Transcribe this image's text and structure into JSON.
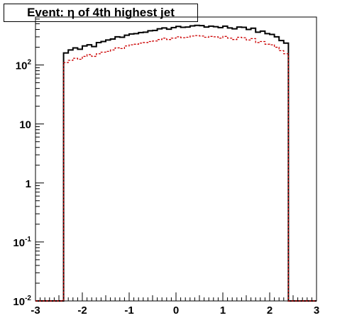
{
  "chart_data": {
    "type": "step",
    "title": "Event: η of 4th highest jet",
    "xlabel": "",
    "ylabel": "",
    "xlim": [
      -3,
      3
    ],
    "ylim": [
      0.01,
      650
    ],
    "yscale": "log",
    "x_ticks": [
      "-3",
      "-2",
      "-1",
      "0",
      "1",
      "2",
      "3"
    ],
    "y_ticks": [
      {
        "base": "10",
        "exp": "-2",
        "value": 0.01
      },
      {
        "base": "10",
        "exp": "-1",
        "value": 0.1
      },
      {
        "base": "1",
        "exp": "",
        "value": 1
      },
      {
        "base": "10",
        "exp": "",
        "value": 10
      },
      {
        "base": "10",
        "exp": "2",
        "value": 100
      }
    ],
    "bin_edges_from": -2.4,
    "bin_width": 0.1,
    "series": [
      {
        "color": "#000000",
        "style": "solid",
        "values": [
          160,
          180,
          195,
          185,
          210,
          220,
          205,
          240,
          250,
          265,
          275,
          300,
          295,
          320,
          335,
          340,
          355,
          360,
          380,
          385,
          410,
          425,
          405,
          430,
          450,
          435,
          440,
          460,
          470,
          465,
          440,
          455,
          445,
          430,
          455,
          425,
          410,
          440,
          435,
          400,
          420,
          360,
          375,
          340,
          330,
          300,
          260,
          235
        ]
      },
      {
        "color": "#cc0000",
        "style": "dashed",
        "values": [
          110,
          120,
          130,
          125,
          140,
          150,
          140,
          155,
          165,
          170,
          180,
          195,
          190,
          210,
          220,
          225,
          235,
          240,
          250,
          255,
          270,
          285,
          270,
          285,
          300,
          290,
          295,
          310,
          315,
          310,
          295,
          305,
          300,
          285,
          305,
          285,
          270,
          295,
          290,
          265,
          280,
          240,
          250,
          225,
          220,
          200,
          175,
          155
        ]
      }
    ],
    "grid": false,
    "legend": "none"
  }
}
